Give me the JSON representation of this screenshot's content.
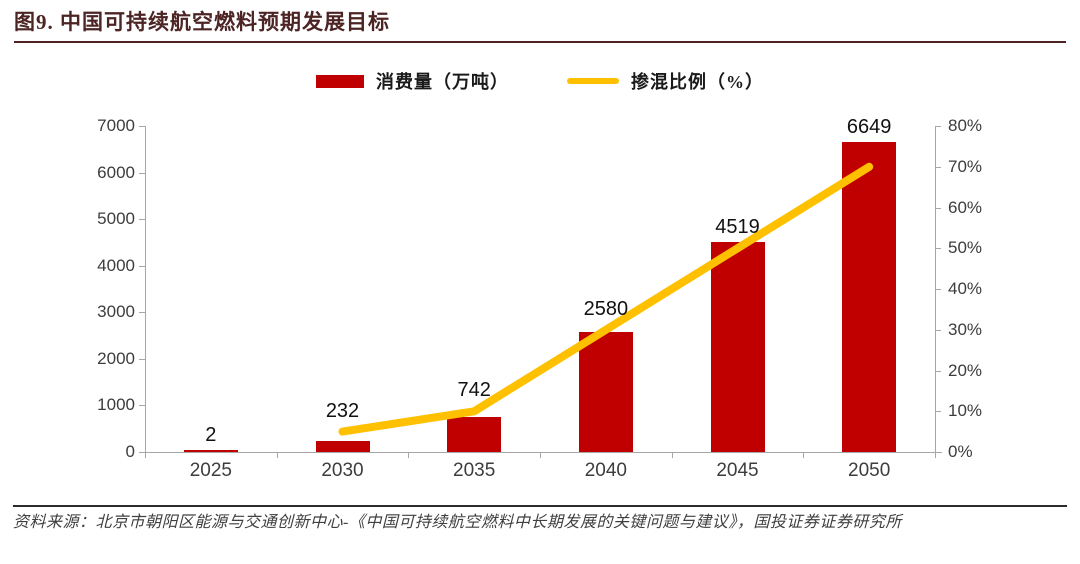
{
  "figure": {
    "title": "图9. 中国可持续航空燃料预期发展目标",
    "source_note": "资料来源：北京市朝阳区能源与交通创新中心-《中国可持续航空燃料中长期发展的关键问题与建议》，国投证券证券研究所"
  },
  "colors": {
    "title": "#4d2424",
    "bar": "#C00000",
    "line": "#FFC000",
    "axis": "#a6a6a6",
    "tick_text": "#3d3d3d"
  },
  "chart_data": {
    "type": "bar",
    "subtype": "bar_line_combo",
    "title": "中国可持续航空燃料预期发展目标",
    "categories": [
      "2025",
      "2030",
      "2035",
      "2040",
      "2045",
      "2050"
    ],
    "series": [
      {
        "name": "消费量（万吨）",
        "type": "bar",
        "axis": "left",
        "color": "#C00000",
        "values": [
          2,
          232,
          742,
          2580,
          4519,
          6649
        ],
        "data_labels": [
          "2",
          "232",
          "742",
          "2580",
          "4519",
          "6649"
        ]
      },
      {
        "name": "掺混比例（%）",
        "type": "line",
        "axis": "right",
        "color": "#FFC000",
        "values": [
          null,
          5,
          10,
          30,
          50,
          70
        ]
      }
    ],
    "left_axis": {
      "min": 0,
      "max": 7000,
      "step": 1000,
      "tick_labels": [
        "0",
        "1000",
        "2000",
        "3000",
        "4000",
        "5000",
        "6000",
        "7000"
      ]
    },
    "right_axis": {
      "min": 0,
      "max": 80,
      "step": 10,
      "tick_labels": [
        "0%",
        "10%",
        "20%",
        "30%",
        "40%",
        "50%",
        "60%",
        "70%",
        "80%"
      ]
    },
    "grid": false,
    "legend_position": "top-center"
  }
}
